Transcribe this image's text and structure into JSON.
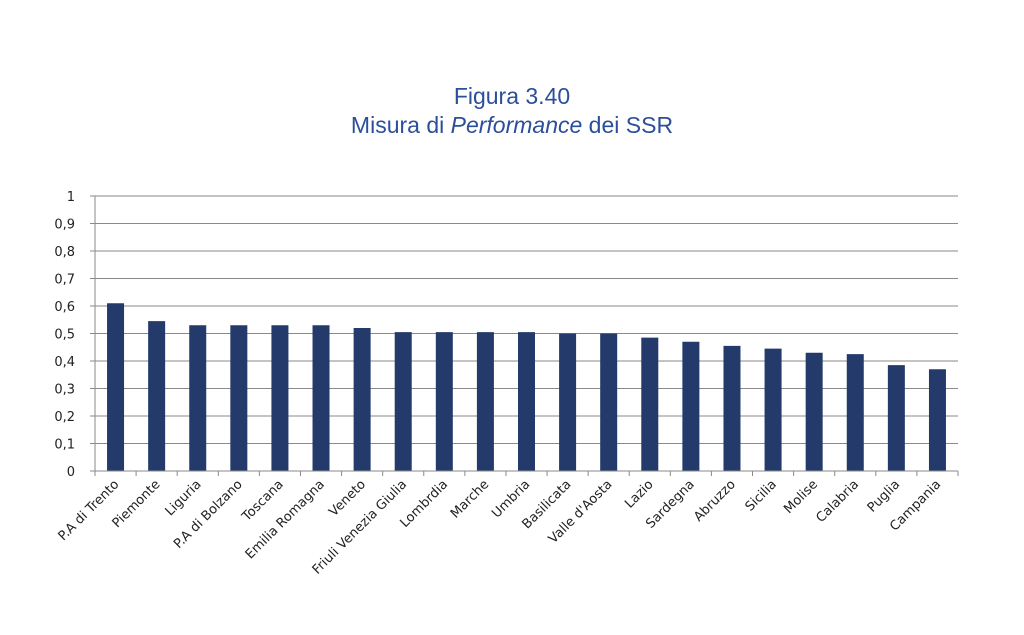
{
  "chart_data": {
    "type": "bar",
    "title": "Figura 3.40",
    "subtitle_parts": [
      "Misura di ",
      "Performance",
      " dei SSR"
    ],
    "xlabel": "",
    "ylabel": "",
    "ylim": [
      0,
      1
    ],
    "yticks": [
      "0",
      "0,1",
      "0,2",
      "0,3",
      "0,4",
      "0,5",
      "0,6",
      "0,7",
      "0,8",
      "0,9",
      "1"
    ],
    "grid": true,
    "bar_color": "#233a6b",
    "categories": [
      "P.A di Trento",
      "Piemonte",
      "Liguria",
      "P.A di Bolzano",
      "Toscana",
      "Emilia Romagna",
      "Veneto",
      "Friuli Venezia Giulia",
      "Lombrdia",
      "Marche",
      "Umbria",
      "Basilicata",
      "Valle d'Aosta",
      "Lazio",
      "Sardegna",
      "Abruzzo",
      "Sicilia",
      "Molise",
      "Calabria",
      "Puglia",
      "Campania"
    ],
    "values": [
      0.61,
      0.545,
      0.53,
      0.53,
      0.53,
      0.53,
      0.52,
      0.505,
      0.505,
      0.505,
      0.505,
      0.5,
      0.5,
      0.485,
      0.47,
      0.455,
      0.445,
      0.43,
      0.425,
      0.385,
      0.37
    ]
  }
}
